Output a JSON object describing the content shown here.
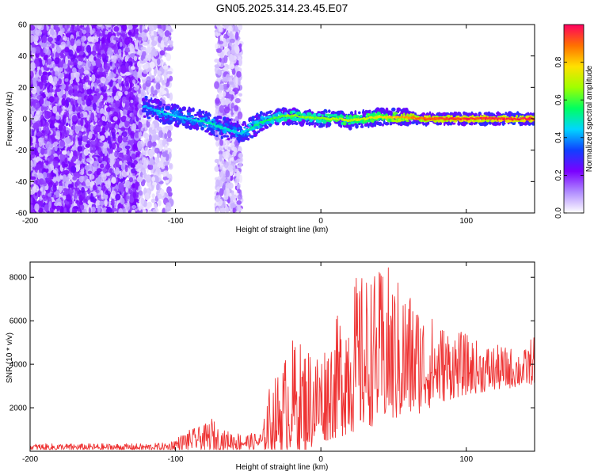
{
  "title": "GN05.2025.314.23.45.E07",
  "chart_data": [
    {
      "type": "heatmap",
      "name": "spectrogram",
      "xlabel": "Height of straight line (km)",
      "ylabel": "Frequency (Hz)",
      "xlim": [
        -200,
        147
      ],
      "ylim": [
        -60,
        60
      ],
      "xticks": [
        -200,
        -100,
        0,
        100
      ],
      "yticks": [
        -60,
        -40,
        -20,
        0,
        20,
        40,
        60
      ],
      "ridge": {
        "description": "dominant frequency track vs height",
        "x": [
          -122,
          -110,
          -100,
          -90,
          -80,
          -70,
          -60,
          -55,
          -50,
          -45,
          -40,
          -30,
          -20,
          -10,
          0,
          10,
          20,
          30,
          40,
          50,
          60,
          70,
          80,
          100,
          120,
          147
        ],
        "freq": [
          8,
          4,
          2,
          0,
          -2,
          -5,
          -8,
          -9,
          -7,
          -4,
          -2,
          1,
          2,
          1,
          0,
          0,
          -1,
          0,
          1,
          1,
          1,
          0,
          0,
          0,
          0,
          0
        ],
        "amplitude": [
          0.4,
          0.45,
          0.45,
          0.45,
          0.5,
          0.5,
          0.45,
          0.45,
          0.5,
          0.55,
          0.55,
          0.6,
          0.65,
          0.65,
          0.65,
          0.7,
          0.7,
          0.72,
          0.75,
          0.8,
          0.85,
          0.9,
          0.92,
          0.93,
          0.95,
          0.95
        ]
      },
      "noise_regions": [
        {
          "x_range": [
            -200,
            -125
          ],
          "freq_range": [
            -60,
            60
          ],
          "amplitude": 0.15
        },
        {
          "x_range": [
            -125,
            -103
          ],
          "freq_range": [
            -60,
            60
          ],
          "amplitude": 0.05
        },
        {
          "x_range": [
            -72,
            -55
          ],
          "freq_range": [
            -60,
            60
          ],
          "amplitude": 0.04
        }
      ]
    },
    {
      "type": "line",
      "name": "snr",
      "xlabel": "Height of straight line (km)",
      "ylabel": "SNR (10 * v/v)",
      "xlim": [
        -200,
        147
      ],
      "ylim": [
        0,
        8700
      ],
      "xticks": [
        -200,
        -100,
        0,
        100
      ],
      "yticks": [
        2000,
        4000,
        6000,
        8000
      ],
      "color": "#ee3333",
      "envelope": {
        "x": [
          -200,
          -150,
          -120,
          -105,
          -100,
          -95,
          -90,
          -80,
          -75,
          -70,
          -60,
          -50,
          -40,
          -37,
          -30,
          -20,
          -10,
          0,
          10,
          20,
          30,
          40,
          45,
          50,
          60,
          70,
          80,
          90,
          100,
          110,
          120,
          130,
          140,
          147
        ],
        "low": [
          0,
          0,
          0,
          0,
          0,
          0,
          0,
          0,
          0,
          0,
          0,
          0,
          0,
          0,
          0,
          0,
          0,
          400,
          600,
          800,
          1000,
          1300,
          1300,
          1300,
          1500,
          1800,
          2200,
          2400,
          2600,
          2700,
          2800,
          2900,
          3000,
          3100
        ],
        "high": [
          350,
          350,
          350,
          400,
          600,
          800,
          1000,
          1200,
          1600,
          1000,
          900,
          800,
          900,
          2800,
          3600,
          5200,
          5000,
          4800,
          6000,
          8000,
          8200,
          8300,
          8700,
          8100,
          7600,
          6700,
          6000,
          5700,
          5400,
          5000,
          4900,
          4800,
          4700,
          5500
        ]
      }
    }
  ],
  "colorbar": {
    "label": "Normalized spectral amplitude",
    "range": [
      0,
      1
    ],
    "ticks": [
      0.0,
      0.2,
      0.4,
      0.6,
      0.8
    ],
    "colors": [
      "#ffffff",
      "#b08cff",
      "#7a00ff",
      "#1040ff",
      "#00d6ff",
      "#00ff60",
      "#a0ff00",
      "#ffe000",
      "#ff7000",
      "#ff0060"
    ]
  }
}
